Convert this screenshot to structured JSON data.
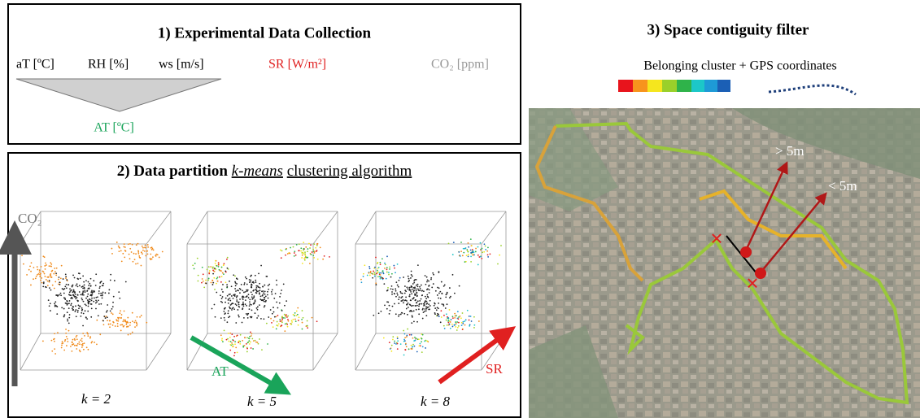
{
  "panel1": {
    "title": "1) Experimental Data Collection",
    "variables": [
      "aT [ºC]",
      "RH [%]",
      "ws [m/s]",
      "SR [W/m²]",
      "CO₂ [ppm]"
    ],
    "derived": "AT [ºC]"
  },
  "panel2": {
    "title_prefix": "2) Data partition",
    "title_method": "k-means",
    "title_suffix": "clustering algorithm",
    "axes": {
      "co2": "CO₂",
      "at": "AT",
      "sr": "SR"
    },
    "plots": [
      "k = 2",
      "k = 5",
      "k = 8"
    ]
  },
  "panel3": {
    "title": "3) Space contiguity filter",
    "legend": "Belonging cluster + GPS coordinates",
    "labels": [
      "> 5m",
      "< 5m"
    ]
  }
}
